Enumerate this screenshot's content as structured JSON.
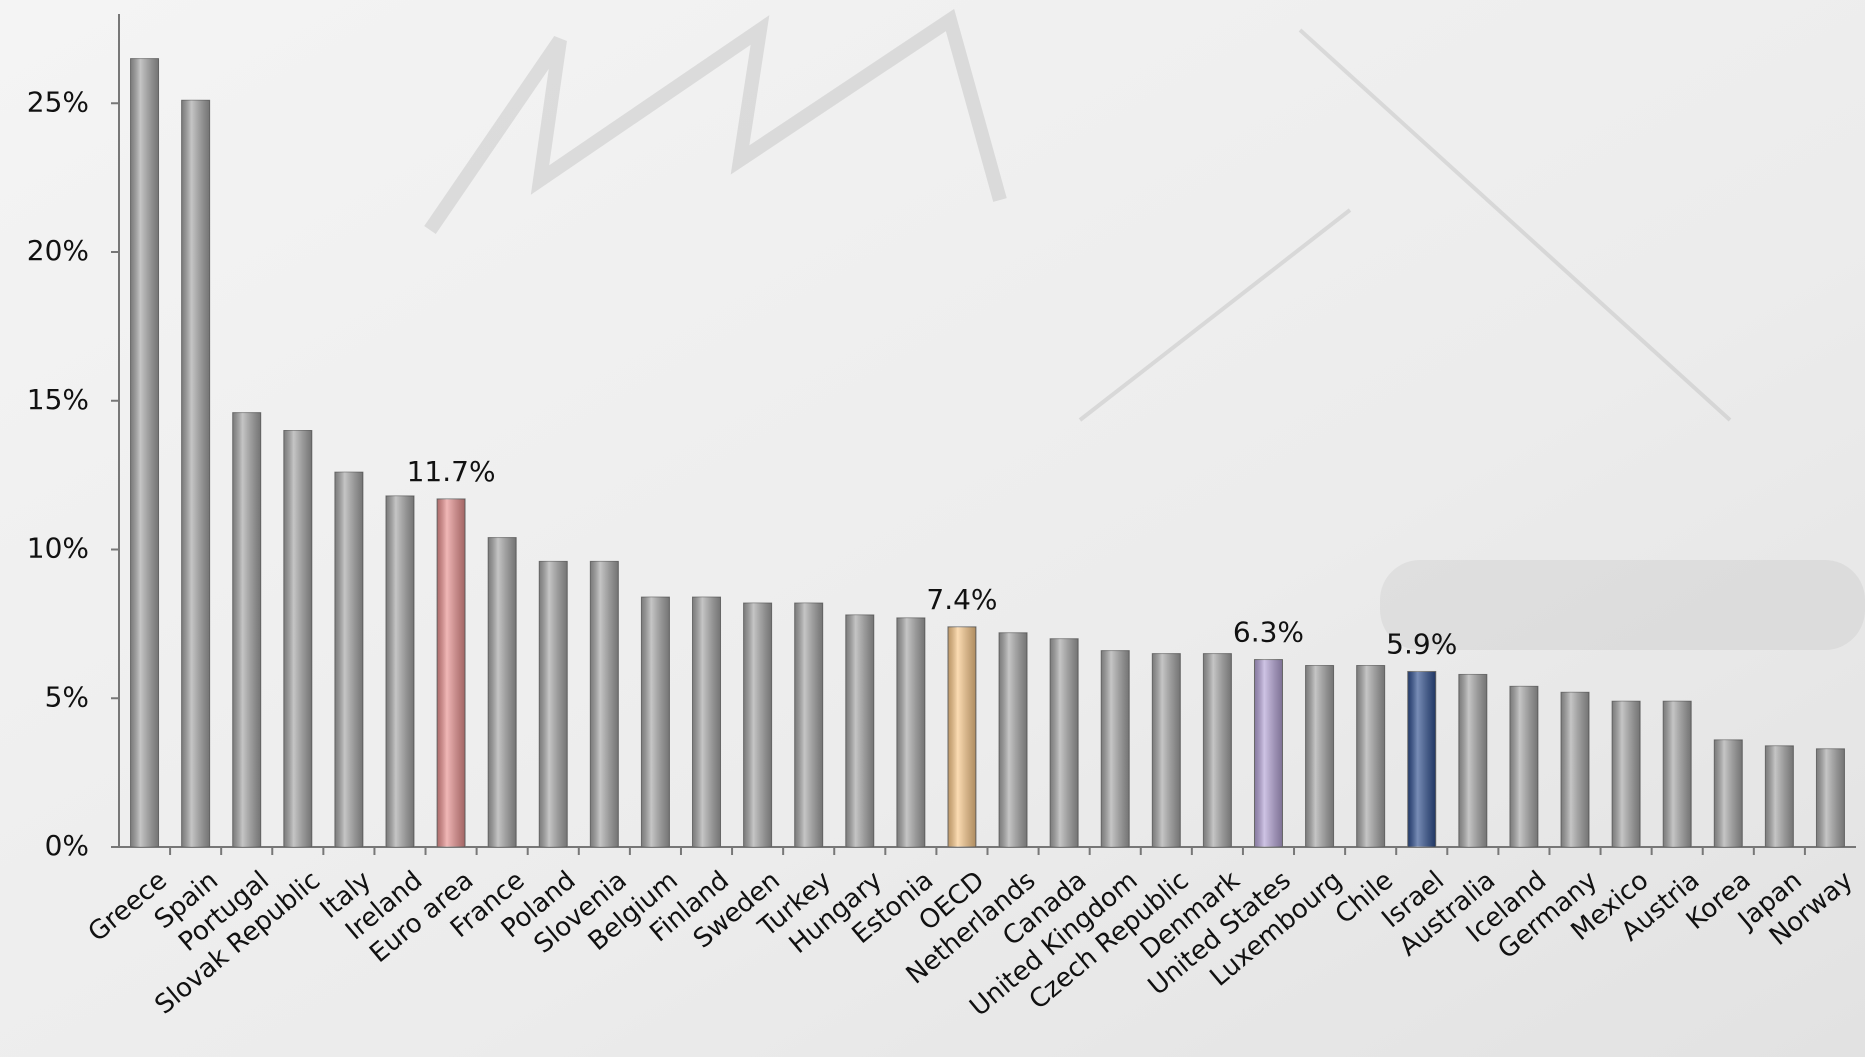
{
  "chart_data": {
    "type": "bar",
    "categories": [
      "Greece",
      "Spain",
      "Portugal",
      "Slovak Republic",
      "Italy",
      "Ireland",
      "Euro area",
      "France",
      "Poland",
      "Slovenia",
      "Belgium",
      "Finland",
      "Sweden",
      "Turkey",
      "Hungary",
      "Estonia",
      "OECD",
      "Netherlands",
      "Canada",
      "United Kingdom",
      "Czech Republic",
      "Denmark",
      "United States",
      "Luxembourg",
      "Chile",
      "Israel",
      "Australia",
      "Iceland",
      "Germany",
      "Mexico",
      "Austria",
      "Korea",
      "Japan",
      "Norway"
    ],
    "values": [
      26.5,
      25.1,
      14.6,
      14.0,
      12.6,
      11.8,
      11.7,
      10.4,
      9.6,
      9.6,
      8.4,
      8.4,
      8.2,
      8.2,
      7.8,
      7.7,
      7.4,
      7.2,
      7.0,
      6.6,
      6.5,
      6.5,
      6.3,
      6.1,
      6.1,
      5.9,
      5.8,
      5.4,
      5.2,
      4.9,
      4.9,
      3.6,
      3.4,
      3.3
    ],
    "value_labels": [
      null,
      null,
      null,
      null,
      null,
      null,
      "11.7%",
      null,
      null,
      null,
      null,
      null,
      null,
      null,
      null,
      null,
      "7.4%",
      null,
      null,
      null,
      null,
      null,
      "6.3%",
      null,
      null,
      "5.9%",
      null,
      null,
      null,
      null,
      null,
      null,
      null,
      null
    ],
    "colors": [
      "#a6a6a6",
      "#a6a6a6",
      "#a6a6a6",
      "#a6a6a6",
      "#a6a6a6",
      "#a6a6a6",
      "#e8908f",
      "#a6a6a6",
      "#a6a6a6",
      "#a6a6a6",
      "#a6a6a6",
      "#a6a6a6",
      "#a6a6a6",
      "#a6a6a6",
      "#a6a6a6",
      "#a6a6a6",
      "#fac98a",
      "#a6a6a6",
      "#a6a6a6",
      "#a6a6a6",
      "#a6a6a6",
      "#a6a6a6",
      "#b4a3d6",
      "#a6a6a6",
      "#a6a6a6",
      "#2f4f8f",
      "#a6a6a6",
      "#a6a6a6",
      "#a6a6a6",
      "#a6a6a6",
      "#a6a6a6",
      "#a6a6a6",
      "#a6a6a6",
      "#a6a6a6"
    ],
    "ylim": [
      0,
      28
    ],
    "yticks": [
      {
        "value": 0,
        "label": "0%"
      },
      {
        "value": 5,
        "label": "5%"
      },
      {
        "value": 10,
        "label": "10%"
      },
      {
        "value": 15,
        "label": "15%"
      },
      {
        "value": 20,
        "label": "20%"
      },
      {
        "value": 25,
        "label": "25%"
      }
    ],
    "grid": false
  }
}
